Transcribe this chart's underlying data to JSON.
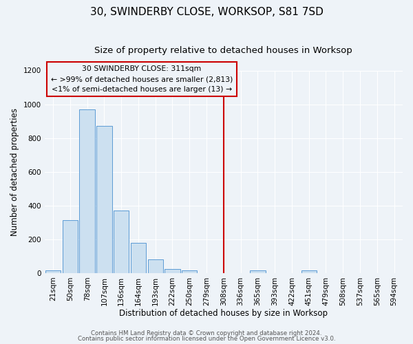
{
  "title": "30, SWINDERBY CLOSE, WORKSOP, S81 7SD",
  "subtitle": "Size of property relative to detached houses in Worksop",
  "xlabel": "Distribution of detached houses by size in Worksop",
  "ylabel": "Number of detached properties",
  "bar_labels": [
    "21sqm",
    "50sqm",
    "78sqm",
    "107sqm",
    "136sqm",
    "164sqm",
    "193sqm",
    "222sqm",
    "250sqm",
    "279sqm",
    "308sqm",
    "336sqm",
    "365sqm",
    "393sqm",
    "422sqm",
    "451sqm",
    "479sqm",
    "508sqm",
    "537sqm",
    "565sqm",
    "594sqm"
  ],
  "bar_heights": [
    15,
    315,
    970,
    870,
    370,
    180,
    80,
    25,
    15,
    0,
    0,
    0,
    15,
    0,
    0,
    15,
    0,
    0,
    0,
    0,
    0
  ],
  "bar_color": "#cce0f0",
  "bar_edge_color": "#5b9bd5",
  "vline_x_index": 10,
  "vline_color": "#cc0000",
  "annotation_line1": "30 SWINDERBY CLOSE: 311sqm",
  "annotation_line2": "← >99% of detached houses are smaller (2,813)",
  "annotation_line3": "<1% of semi-detached houses are larger (13) →",
  "annotation_box_color": "#cc0000",
  "ylim": [
    0,
    1200
  ],
  "yticks": [
    0,
    200,
    400,
    600,
    800,
    1000,
    1200
  ],
  "bg_color": "#eef3f8",
  "grid_color": "#ffffff",
  "title_fontsize": 11,
  "subtitle_fontsize": 9.5,
  "axis_label_fontsize": 8.5,
  "tick_fontsize": 7.5,
  "footer_line1": "Contains HM Land Registry data © Crown copyright and database right 2024.",
  "footer_line2": "Contains public sector information licensed under the Open Government Licence v3.0."
}
